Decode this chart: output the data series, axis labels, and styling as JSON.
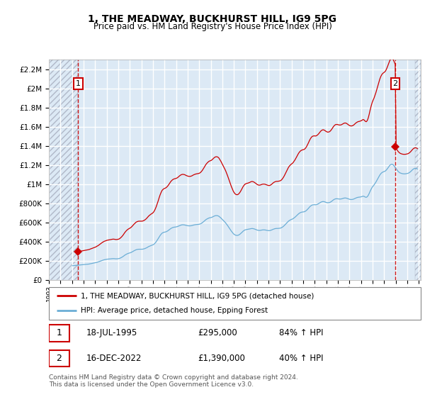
{
  "title": "1, THE MEADWAY, BUCKHURST HILL, IG9 5PG",
  "subtitle": "Price paid vs. HM Land Registry's House Price Index (HPI)",
  "ylim": [
    0,
    2300000
  ],
  "yticks": [
    0,
    200000,
    400000,
    600000,
    800000,
    1000000,
    1200000,
    1400000,
    1600000,
    1800000,
    2000000,
    2200000
  ],
  "ytick_labels": [
    "£0",
    "£200K",
    "£400K",
    "£600K",
    "£800K",
    "£1M",
    "£1.2M",
    "£1.4M",
    "£1.6M",
    "£1.8M",
    "£2M",
    "£2.2M"
  ],
  "plot_bg_color": "#dce9f5",
  "grid_color": "#ffffff",
  "hpi_line_color": "#6baed6",
  "price_line_color": "#cc0000",
  "dashed_line_color": "#cc0000",
  "sale1_date": "1995-07-18",
  "sale1_price": 295000,
  "sale2_date": "2022-12-16",
  "sale2_price": 1390000,
  "legend_label1": "1, THE MEADWAY, BUCKHURST HILL, IG9 5PG (detached house)",
  "legend_label2": "HPI: Average price, detached house, Epping Forest",
  "footer": "Contains HM Land Registry data © Crown copyright and database right 2024.\nThis data is licensed under the Open Government Licence v3.0.",
  "hpi_monthly": {
    "1995-01": 148000,
    "1995-02": 149000,
    "1995-03": 150000,
    "1995-04": 151000,
    "1995-05": 152000,
    "1995-06": 153000,
    "1995-07": 154000,
    "1995-08": 155000,
    "1995-09": 156000,
    "1995-10": 157000,
    "1995-11": 158000,
    "1995-12": 159000,
    "1996-01": 160000,
    "1996-02": 161000,
    "1996-03": 162000,
    "1996-04": 163000,
    "1996-05": 164000,
    "1996-06": 165000,
    "1996-07": 167000,
    "1996-08": 169000,
    "1996-09": 171000,
    "1996-10": 173000,
    "1996-11": 175000,
    "1996-12": 177000,
    "1997-01": 179000,
    "1997-02": 182000,
    "1997-03": 185000,
    "1997-04": 188000,
    "1997-05": 192000,
    "1997-06": 196000,
    "1997-07": 200000,
    "1997-08": 204000,
    "1997-09": 207000,
    "1997-10": 210000,
    "1997-11": 212000,
    "1997-12": 214000,
    "1998-01": 216000,
    "1998-02": 217000,
    "1998-03": 218000,
    "1998-04": 219000,
    "1998-05": 220000,
    "1998-06": 221000,
    "1998-07": 222000,
    "1998-08": 222000,
    "1998-09": 221000,
    "1998-10": 220000,
    "1998-11": 220000,
    "1998-12": 221000,
    "1999-01": 222000,
    "1999-02": 225000,
    "1999-03": 229000,
    "1999-04": 234000,
    "1999-05": 240000,
    "1999-06": 247000,
    "1999-07": 255000,
    "1999-08": 262000,
    "1999-09": 268000,
    "1999-10": 273000,
    "1999-11": 277000,
    "1999-12": 280000,
    "2000-01": 283000,
    "2000-02": 287000,
    "2000-03": 292000,
    "2000-04": 298000,
    "2000-05": 304000,
    "2000-06": 309000,
    "2000-07": 314000,
    "2000-08": 317000,
    "2000-09": 319000,
    "2000-10": 320000,
    "2000-11": 320000,
    "2000-12": 320000,
    "2001-01": 320000,
    "2001-02": 321000,
    "2001-03": 323000,
    "2001-04": 326000,
    "2001-05": 330000,
    "2001-06": 335000,
    "2001-07": 341000,
    "2001-08": 347000,
    "2001-09": 352000,
    "2001-10": 356000,
    "2001-11": 360000,
    "2001-12": 363000,
    "2002-01": 368000,
    "2002-02": 376000,
    "2002-03": 386000,
    "2002-04": 399000,
    "2002-05": 414000,
    "2002-06": 430000,
    "2002-07": 447000,
    "2002-08": 463000,
    "2002-09": 476000,
    "2002-10": 487000,
    "2002-11": 493000,
    "2002-12": 497000,
    "2003-01": 499000,
    "2003-02": 502000,
    "2003-03": 506000,
    "2003-04": 512000,
    "2003-05": 519000,
    "2003-06": 527000,
    "2003-07": 535000,
    "2003-08": 541000,
    "2003-09": 546000,
    "2003-10": 549000,
    "2003-11": 551000,
    "2003-12": 552000,
    "2004-01": 554000,
    "2004-02": 557000,
    "2004-03": 561000,
    "2004-04": 566000,
    "2004-05": 570000,
    "2004-06": 573000,
    "2004-07": 575000,
    "2004-08": 575000,
    "2004-09": 574000,
    "2004-10": 572000,
    "2004-11": 569000,
    "2004-12": 567000,
    "2005-01": 565000,
    "2005-02": 564000,
    "2005-03": 564000,
    "2005-04": 565000,
    "2005-05": 567000,
    "2005-06": 570000,
    "2005-07": 573000,
    "2005-08": 575000,
    "2005-09": 577000,
    "2005-10": 578000,
    "2005-11": 579000,
    "2005-12": 580000,
    "2006-01": 582000,
    "2006-02": 586000,
    "2006-03": 591000,
    "2006-04": 598000,
    "2006-05": 606000,
    "2006-06": 615000,
    "2006-07": 624000,
    "2006-08": 632000,
    "2006-09": 638000,
    "2006-10": 643000,
    "2006-11": 647000,
    "2006-12": 649000,
    "2007-01": 651000,
    "2007-02": 655000,
    "2007-03": 660000,
    "2007-04": 665000,
    "2007-05": 669000,
    "2007-06": 671000,
    "2007-07": 671000,
    "2007-08": 669000,
    "2007-09": 664000,
    "2007-10": 656000,
    "2007-11": 647000,
    "2007-12": 637000,
    "2008-01": 627000,
    "2008-02": 617000,
    "2008-03": 606000,
    "2008-04": 595000,
    "2008-05": 582000,
    "2008-06": 568000,
    "2008-07": 553000,
    "2008-08": 538000,
    "2008-09": 523000,
    "2008-10": 508000,
    "2008-11": 495000,
    "2008-12": 483000,
    "2009-01": 474000,
    "2009-02": 468000,
    "2009-03": 465000,
    "2009-04": 464000,
    "2009-05": 466000,
    "2009-06": 471000,
    "2009-07": 478000,
    "2009-08": 487000,
    "2009-09": 497000,
    "2009-10": 507000,
    "2009-11": 515000,
    "2009-12": 521000,
    "2010-01": 524000,
    "2010-02": 526000,
    "2010-03": 527000,
    "2010-04": 529000,
    "2010-05": 531000,
    "2010-06": 534000,
    "2010-07": 536000,
    "2010-08": 536000,
    "2010-09": 534000,
    "2010-10": 531000,
    "2010-11": 527000,
    "2010-12": 523000,
    "2011-01": 519000,
    "2011-02": 517000,
    "2011-03": 516000,
    "2011-04": 517000,
    "2011-05": 519000,
    "2011-06": 521000,
    "2011-07": 522000,
    "2011-08": 522000,
    "2011-09": 521000,
    "2011-10": 519000,
    "2011-11": 517000,
    "2011-12": 515000,
    "2012-01": 514000,
    "2012-02": 515000,
    "2012-03": 518000,
    "2012-04": 522000,
    "2012-05": 527000,
    "2012-06": 531000,
    "2012-07": 534000,
    "2012-08": 536000,
    "2012-09": 537000,
    "2012-10": 537000,
    "2012-11": 538000,
    "2012-12": 539000,
    "2013-01": 541000,
    "2013-02": 545000,
    "2013-03": 551000,
    "2013-04": 559000,
    "2013-05": 568000,
    "2013-06": 579000,
    "2013-07": 590000,
    "2013-08": 601000,
    "2013-09": 611000,
    "2013-10": 619000,
    "2013-11": 625000,
    "2013-12": 630000,
    "2014-01": 634000,
    "2014-02": 639000,
    "2014-03": 646000,
    "2014-04": 654000,
    "2014-05": 663000,
    "2014-06": 673000,
    "2014-07": 683000,
    "2014-08": 692000,
    "2014-09": 699000,
    "2014-10": 704000,
    "2014-11": 707000,
    "2014-12": 709000,
    "2015-01": 710000,
    "2015-02": 713000,
    "2015-03": 718000,
    "2015-04": 726000,
    "2015-05": 736000,
    "2015-06": 747000,
    "2015-07": 759000,
    "2015-08": 769000,
    "2015-09": 777000,
    "2015-10": 782000,
    "2015-11": 784000,
    "2015-12": 785000,
    "2016-01": 784000,
    "2016-02": 785000,
    "2016-03": 788000,
    "2016-04": 793000,
    "2016-05": 799000,
    "2016-06": 806000,
    "2016-07": 812000,
    "2016-08": 816000,
    "2016-09": 818000,
    "2016-10": 817000,
    "2016-11": 814000,
    "2016-12": 810000,
    "2017-01": 807000,
    "2017-02": 805000,
    "2017-03": 806000,
    "2017-04": 808000,
    "2017-05": 813000,
    "2017-06": 820000,
    "2017-07": 828000,
    "2017-08": 836000,
    "2017-09": 842000,
    "2017-10": 846000,
    "2017-11": 847000,
    "2017-12": 847000,
    "2018-01": 845000,
    "2018-02": 844000,
    "2018-03": 844000,
    "2018-04": 845000,
    "2018-05": 848000,
    "2018-06": 851000,
    "2018-07": 854000,
    "2018-08": 855000,
    "2018-09": 854000,
    "2018-10": 851000,
    "2018-11": 847000,
    "2018-12": 843000,
    "2019-01": 840000,
    "2019-02": 839000,
    "2019-03": 839000,
    "2019-04": 841000,
    "2019-05": 844000,
    "2019-06": 849000,
    "2019-07": 854000,
    "2019-08": 858000,
    "2019-09": 861000,
    "2019-10": 863000,
    "2019-11": 864000,
    "2019-12": 866000,
    "2020-01": 868000,
    "2020-02": 872000,
    "2020-03": 874000,
    "2020-04": 870000,
    "2020-05": 864000,
    "2020-06": 862000,
    "2020-07": 868000,
    "2020-08": 882000,
    "2020-09": 903000,
    "2020-10": 926000,
    "2020-11": 947000,
    "2020-12": 965000,
    "2021-01": 979000,
    "2021-02": 991000,
    "2021-03": 1005000,
    "2021-04": 1021000,
    "2021-05": 1039000,
    "2021-06": 1058000,
    "2021-07": 1077000,
    "2021-08": 1094000,
    "2021-09": 1108000,
    "2021-10": 1118000,
    "2021-11": 1125000,
    "2021-12": 1129000,
    "2022-01": 1133000,
    "2022-02": 1139000,
    "2022-03": 1149000,
    "2022-04": 1162000,
    "2022-05": 1176000,
    "2022-06": 1190000,
    "2022-07": 1201000,
    "2022-08": 1207000,
    "2022-09": 1207000,
    "2022-10": 1200000,
    "2022-11": 1188000,
    "2022-12": 1174000,
    "2023-01": 1159000,
    "2023-02": 1145000,
    "2023-03": 1133000,
    "2023-04": 1124000,
    "2023-05": 1117000,
    "2023-06": 1113000,
    "2023-07": 1110000,
    "2023-08": 1108000,
    "2023-09": 1107000,
    "2023-10": 1107000,
    "2023-11": 1108000,
    "2023-12": 1110000,
    "2024-01": 1112000,
    "2024-02": 1116000,
    "2024-03": 1122000,
    "2024-04": 1130000,
    "2024-05": 1140000,
    "2024-06": 1150000,
    "2024-07": 1158000,
    "2024-08": 1163000,
    "2024-09": 1165000,
    "2024-10": 1163000,
    "2024-11": 1158000
  }
}
